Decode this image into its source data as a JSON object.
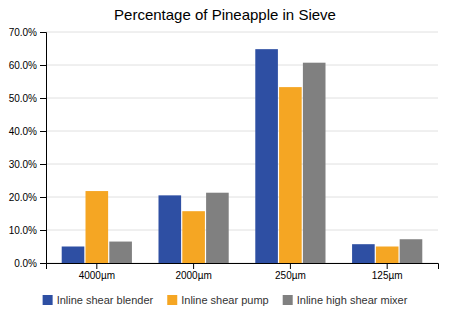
{
  "chart_data": {
    "type": "bar",
    "title": "Percentage of Pineapple in Sieve",
    "categories": [
      "4000µm",
      "2000µm",
      "250µm",
      "125µm"
    ],
    "series": [
      {
        "name": "Inline shear blender",
        "color": "#2E4FA3",
        "values": [
          0.05,
          0.205,
          0.648,
          0.057
        ]
      },
      {
        "name": "Inline shear pump",
        "color": "#F5A623",
        "values": [
          0.218,
          0.157,
          0.533,
          0.05
        ]
      },
      {
        "name": "Inline high shear mixer",
        "color": "#808080",
        "values": [
          0.065,
          0.213,
          0.607,
          0.072
        ]
      }
    ],
    "ylim": [
      0,
      0.7
    ],
    "yticks": [
      {
        "value": 0.0,
        "label": "0.0%"
      },
      {
        "value": 0.1,
        "label": "10.0%"
      },
      {
        "value": 0.2,
        "label": "20.0%"
      },
      {
        "value": 0.3,
        "label": "30.0%"
      },
      {
        "value": 0.4,
        "label": "40.0%"
      },
      {
        "value": 0.5,
        "label": "50.0%"
      },
      {
        "value": 0.6,
        "label": "60.0%"
      },
      {
        "value": 0.7,
        "label": "70.0%"
      }
    ],
    "grid": true,
    "legend": "bottom"
  }
}
